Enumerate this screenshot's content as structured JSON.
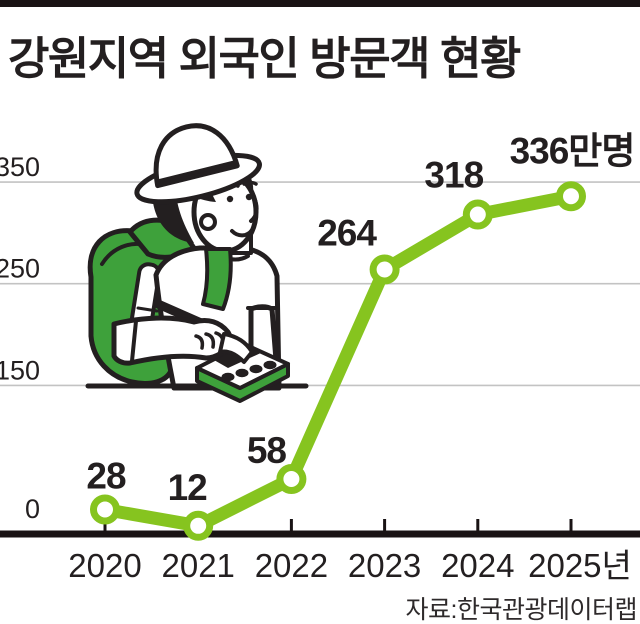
{
  "title": "강원지역 외국인 방문객 현황",
  "source": "자료:한국관광데이터랩",
  "colors": {
    "line_green": "#86c41f",
    "backpack_green": "#3ea13b",
    "ink": "#231f20",
    "grid_gray": "#c3c3c3",
    "axis_black": "#191314"
  },
  "illustration": {
    "name": "tourist-pressing-calculator"
  },
  "chart_data": {
    "type": "line",
    "title": "강원지역 외국인 방문객 현황",
    "categories": [
      "2020",
      "2021",
      "2022",
      "2023",
      "2024",
      "2025년"
    ],
    "values": [
      28,
      12,
      58,
      264,
      318,
      336
    ],
    "value_labels": [
      "28",
      "12",
      "58",
      "264",
      "318",
      "336만명"
    ],
    "unit": "만명",
    "y_ticks": [
      0,
      150,
      250,
      350
    ],
    "y_tick_labels": [
      "0",
      "150",
      "250",
      "350"
    ],
    "ylim": [
      0,
      365
    ],
    "xlabel": "",
    "ylabel": "",
    "grid": "horizontal",
    "legend": "none",
    "source": "자료:한국관광데이터랩"
  }
}
